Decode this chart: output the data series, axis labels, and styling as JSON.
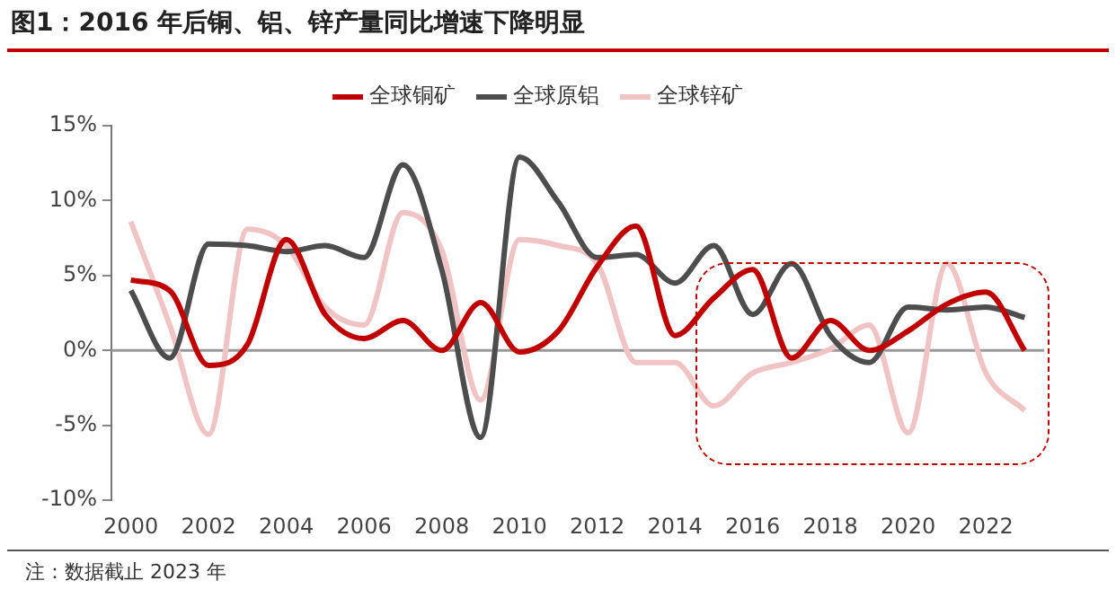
{
  "chart_data": {
    "type": "line",
    "title": "图1：2016 年后铜、铝、锌产量同比增速下降明显",
    "x": [
      2000,
      2001,
      2002,
      2003,
      2004,
      2005,
      2006,
      2007,
      2008,
      2009,
      2010,
      2011,
      2012,
      2013,
      2014,
      2015,
      2016,
      2017,
      2018,
      2019,
      2020,
      2021,
      2022,
      2023
    ],
    "series": [
      {
        "name": "全球铜矿",
        "color": "#c00000",
        "values": [
          4.7,
          4.0,
          -1.0,
          0.4,
          7.4,
          2.4,
          0.8,
          2.0,
          0,
          3.2,
          -0.1,
          1.3,
          5.6,
          8.3,
          1.0,
          3.5,
          5.4,
          -0.5,
          2.0,
          0,
          1.3,
          3.1,
          3.9,
          0
        ]
      },
      {
        "name": "全球原铝",
        "color": "#4d4d4d",
        "values": [
          4.0,
          -0.5,
          7.1,
          7.0,
          6.6,
          7.0,
          6.2,
          12.4,
          5.4,
          -5.8,
          12.9,
          9.9,
          6.2,
          6.4,
          4.5,
          7.0,
          2.4,
          5.8,
          1.0,
          -0.8,
          2.9,
          2.7,
          2.9,
          2.2
        ]
      },
      {
        "name": "全球锌矿",
        "color": "#f0c4c4",
        "values": [
          8.6,
          1.7,
          -5.6,
          8.1,
          7.0,
          2.9,
          1.7,
          9.2,
          6.7,
          -3.3,
          7.4,
          7.0,
          5.8,
          -0.8,
          -0.8,
          -3.7,
          -1.5,
          -0.8,
          0.1,
          1.7,
          -5.5,
          5.8,
          -1.5,
          -4.0
        ]
      }
    ],
    "xlim": [
      1999.5,
      2023.5
    ],
    "xticks": [
      2000,
      2002,
      2004,
      2006,
      2008,
      2010,
      2012,
      2014,
      2016,
      2018,
      2020,
      2022
    ],
    "ylim": [
      -10,
      15
    ],
    "yticks": [
      {
        "value": -10,
        "label": "-10%"
      },
      {
        "value": -5,
        "label": "-5%"
      },
      {
        "value": 0,
        "label": "0%"
      },
      {
        "value": 5,
        "label": "5%"
      },
      {
        "value": 10,
        "label": "10%"
      },
      {
        "value": 15,
        "label": "15%"
      }
    ],
    "legend": "top",
    "ref_lines": [
      {
        "axis": "y",
        "value": 0,
        "color": "#999999"
      }
    ],
    "marker": "none",
    "line_style": "solid",
    "annotations": [
      "注：数据截止 2023 年"
    ]
  }
}
